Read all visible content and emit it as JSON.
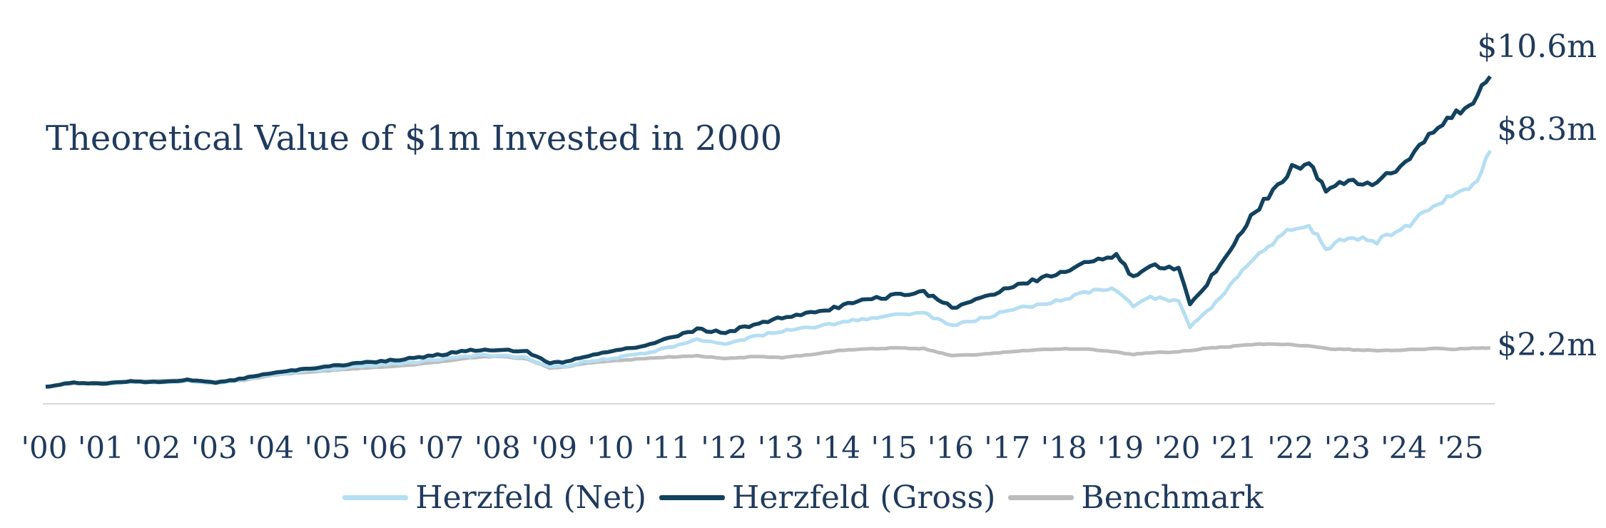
{
  "chart_data": {
    "type": "line",
    "title": "Theoretical Value of $1m Invested in 2000",
    "xlabel": "",
    "ylabel": "",
    "x_ticks": [
      "'00",
      "'01",
      "'02",
      "'03",
      "'04",
      "'05",
      "'06",
      "'07",
      "'08",
      "'09",
      "'10",
      "'11",
      "'12",
      "'13",
      "'14",
      "'15",
      "'16",
      "'17",
      "'18",
      "'19",
      "'20",
      "'21",
      "'22",
      "'23",
      "'24",
      "'25"
    ],
    "ylim": [
      0.5,
      11.5
    ],
    "grid": false,
    "legend_position": "bottom",
    "x": [
      2000.0,
      2000.5,
      2001.0,
      2001.5,
      2002.0,
      2002.5,
      2003.0,
      2003.5,
      2004.0,
      2004.5,
      2005.0,
      2005.5,
      2006.0,
      2006.5,
      2007.0,
      2007.5,
      2008.0,
      2008.5,
      2008.9,
      2009.2,
      2009.5,
      2010.0,
      2010.5,
      2011.0,
      2011.5,
      2012.0,
      2012.5,
      2013.0,
      2013.5,
      2014.0,
      2014.5,
      2015.0,
      2015.5,
      2016.0,
      2016.5,
      2017.0,
      2017.5,
      2018.0,
      2018.5,
      2018.9,
      2019.2,
      2019.5,
      2020.0,
      2020.2,
      2020.5,
      2020.9,
      2021.2,
      2021.5,
      2022.0,
      2022.3,
      2022.6,
      2023.0,
      2023.5,
      2024.0,
      2024.5,
      2024.9,
      2025.2,
      2025.5
    ],
    "series": [
      {
        "name": "Herzfeld (Net)",
        "color": "#b5def3",
        "values": [
          1.0,
          1.12,
          1.08,
          1.15,
          1.12,
          1.18,
          1.1,
          1.22,
          1.38,
          1.47,
          1.55,
          1.62,
          1.68,
          1.75,
          1.85,
          1.95,
          1.98,
          1.9,
          1.6,
          1.64,
          1.76,
          1.88,
          2.02,
          2.2,
          2.45,
          2.35,
          2.55,
          2.72,
          2.82,
          2.98,
          3.12,
          3.22,
          3.28,
          2.9,
          3.1,
          3.35,
          3.55,
          3.72,
          3.98,
          4.02,
          3.5,
          3.75,
          3.65,
          2.85,
          3.3,
          4.1,
          4.7,
          5.2,
          5.9,
          6.0,
          5.3,
          5.6,
          5.5,
          5.9,
          6.65,
          7.0,
          7.2,
          8.3
        ]
      },
      {
        "name": "Herzfeld (Gross)",
        "color": "#12425e",
        "values": [
          1.0,
          1.13,
          1.09,
          1.17,
          1.14,
          1.21,
          1.13,
          1.26,
          1.43,
          1.53,
          1.63,
          1.72,
          1.8,
          1.88,
          2.0,
          2.12,
          2.16,
          2.08,
          1.72,
          1.78,
          1.94,
          2.08,
          2.25,
          2.48,
          2.78,
          2.68,
          2.92,
          3.13,
          3.27,
          3.48,
          3.68,
          3.82,
          3.92,
          3.45,
          3.72,
          4.05,
          4.32,
          4.58,
          4.95,
          5.05,
          4.4,
          4.75,
          4.65,
          3.6,
          4.2,
          5.25,
          6.05,
          6.75,
          7.75,
          7.95,
          7.0,
          7.4,
          7.3,
          7.9,
          8.95,
          9.5,
          9.85,
          10.6
        ]
      },
      {
        "name": "Benchmark",
        "color": "#bdbdbd",
        "values": [
          1.0,
          1.1,
          1.12,
          1.15,
          1.18,
          1.2,
          1.14,
          1.2,
          1.36,
          1.44,
          1.5,
          1.56,
          1.62,
          1.68,
          1.78,
          1.9,
          1.95,
          1.86,
          1.58,
          1.62,
          1.72,
          1.8,
          1.86,
          1.92,
          1.96,
          1.87,
          1.93,
          1.9,
          2.0,
          2.12,
          2.17,
          2.2,
          2.18,
          1.96,
          2.0,
          2.08,
          2.14,
          2.18,
          2.15,
          2.07,
          2.0,
          2.05,
          2.08,
          2.12,
          2.2,
          2.24,
          2.3,
          2.32,
          2.3,
          2.26,
          2.18,
          2.15,
          2.12,
          2.14,
          2.18,
          2.16,
          2.2,
          2.2
        ]
      }
    ],
    "end_labels": [
      "$8.3m",
      "$10.6m",
      "$2.2m"
    ]
  }
}
